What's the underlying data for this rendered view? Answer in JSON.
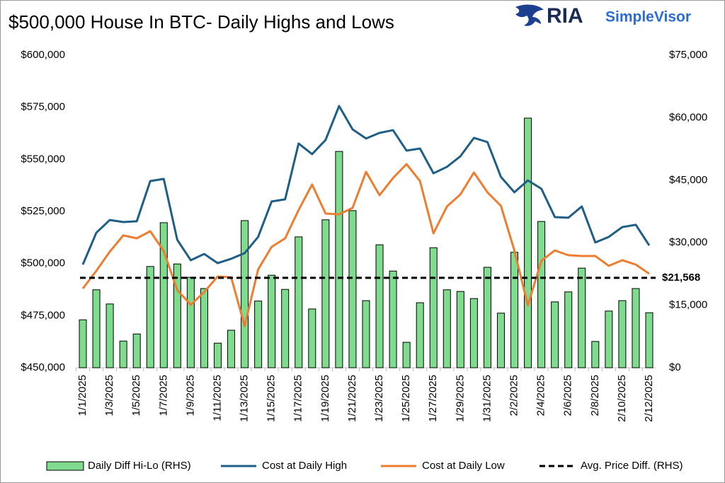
{
  "brand": {
    "name": "RIA",
    "product": "SimpleVisor"
  },
  "chart_data": {
    "type": "bar-line",
    "title": "$500,000 House In BTC- Daily Highs and Lows",
    "categories": [
      "1/1/2025",
      null,
      "1/3/2025",
      null,
      "1/5/2025",
      null,
      "1/7/2025",
      null,
      "1/9/2025",
      null,
      "1/11/2025",
      null,
      "1/13/2025",
      null,
      "1/15/2025",
      null,
      "1/17/2025",
      null,
      "1/19/2025",
      null,
      "1/21/2025",
      null,
      "1/23/2025",
      null,
      "1/25/2025",
      null,
      "1/27/2025",
      null,
      "1/29/2025",
      null,
      "1/31/2025",
      null,
      "2/2/2025",
      null,
      "2/4/2025",
      null,
      "2/6/2025",
      null,
      "2/8/2025",
      null,
      "2/10/2025",
      null,
      "2/12/2025"
    ],
    "series": [
      {
        "name": "Daily Diff Hi-Lo (RHS)",
        "type": "bar",
        "axis": "y2",
        "color": "#7fdc8e",
        "values": [
          11500,
          18700,
          15300,
          6400,
          8100,
          24300,
          34800,
          24900,
          21700,
          19000,
          5900,
          9000,
          35300,
          16000,
          22200,
          18800,
          31400,
          14100,
          35500,
          51900,
          37700,
          16100,
          29500,
          23200,
          6100,
          15600,
          28800,
          18700,
          18300,
          16600,
          24100,
          13100,
          27700,
          59900,
          35100,
          15800,
          18200,
          23900,
          6300,
          13600,
          16100,
          19000,
          13200
        ]
      },
      {
        "name": "Cost at Daily High",
        "type": "line",
        "axis": "y",
        "color": "#1f5f86",
        "values": [
          499500,
          514800,
          520900,
          519900,
          520300,
          539600,
          540600,
          511400,
          501600,
          504600,
          500200,
          502300,
          505000,
          512800,
          529800,
          530800,
          557600,
          552500,
          559300,
          575600,
          564400,
          560000,
          562700,
          564000,
          554200,
          555200,
          543300,
          546400,
          551500,
          560300,
          558300,
          541600,
          534200,
          539900,
          535900,
          522300,
          522000,
          527400,
          510100,
          512800,
          517500,
          518600,
          508700
        ]
      },
      {
        "name": "Cost at Daily Low",
        "type": "line",
        "axis": "y",
        "color": "#ed7d31",
        "values": [
          488000,
          496500,
          505700,
          513500,
          512100,
          515500,
          506000,
          487300,
          480200,
          486300,
          493800,
          493400,
          470000,
          497200,
          508000,
          512100,
          525700,
          537900,
          524000,
          523600,
          526700,
          544000,
          532800,
          541000,
          547700,
          539600,
          514500,
          527400,
          533200,
          543700,
          534200,
          527700,
          506300,
          479900,
          501300,
          506300,
          504000,
          503600,
          503600,
          498900,
          501600,
          499500,
          495100
        ]
      }
    ],
    "reference_line": {
      "name": "Avg. Price Diff. (RHS)",
      "axis": "y2",
      "value": 21568,
      "value_label": "$21,568",
      "color": "#000000",
      "dashed": true
    },
    "ylim": [
      450000,
      600000
    ],
    "yticks": [
      {
        "value": 450000,
        "label": "$450,000"
      },
      {
        "value": 475000,
        "label": "$475,000"
      },
      {
        "value": 500000,
        "label": "$500,000"
      },
      {
        "value": 525000,
        "label": "$525,000"
      },
      {
        "value": 550000,
        "label": "$550,000"
      },
      {
        "value": 575000,
        "label": "$575,000"
      },
      {
        "value": 600000,
        "label": "$600,000"
      }
    ],
    "y2lim": [
      0,
      75000
    ],
    "y2ticks": [
      {
        "value": 0,
        "label": "$0"
      },
      {
        "value": 15000,
        "label": "$15,000"
      },
      {
        "value": 30000,
        "label": "$30,000"
      },
      {
        "value": 45000,
        "label": "$45,000"
      },
      {
        "value": 60000,
        "label": "$60,000"
      },
      {
        "value": 75000,
        "label": "$75,000"
      }
    ],
    "grid": false,
    "legend": "bottom"
  }
}
